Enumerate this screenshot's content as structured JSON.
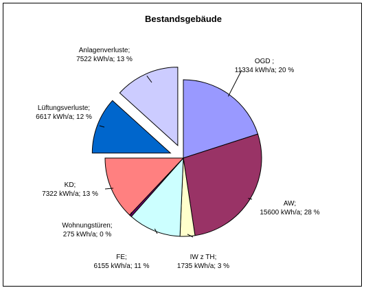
{
  "chart_data": {
    "type": "pie",
    "title": "Bestandsgebäude",
    "unit": "kWh/a",
    "slices": [
      {
        "name": "OGD",
        "value": 11334,
        "percent": "20 %",
        "color": "#9999ff",
        "exploded": false,
        "label_line1": "OGD ;",
        "label_line2": "11334 kWh/a; 20 %"
      },
      {
        "name": "AW",
        "value": 15600,
        "percent": "28 %",
        "color": "#993366",
        "exploded": false,
        "label_line1": "AW;",
        "label_line2": "15600 kWh/a; 28 %"
      },
      {
        "name": "IW z TH",
        "value": 1735,
        "percent": "3 %",
        "color": "#ffffcc",
        "exploded": false,
        "label_line1": "IW z TH;",
        "label_line2": "1735 kWh/a; 3 %"
      },
      {
        "name": "FE",
        "value": 6155,
        "percent": "11 %",
        "color": "#ccffff",
        "exploded": false,
        "label_line1": "FE;",
        "label_line2": "6155 kWh/a; 11 %"
      },
      {
        "name": "Wohnungstüren",
        "value": 275,
        "percent": "0 %",
        "color": "#660066",
        "exploded": false,
        "label_line1": "Wohnungstüren;",
        "label_line2": "275 kWh/a; 0 %"
      },
      {
        "name": "KD",
        "value": 7322,
        "percent": "13 %",
        "color": "#ff8080",
        "exploded": false,
        "label_line1": "KD;",
        "label_line2": "7322 kWh/a; 13 %"
      },
      {
        "name": "Lüftungsverluste",
        "value": 6617,
        "percent": "12 %",
        "color": "#0066cc",
        "exploded": true,
        "label_line1": "Lüftungsverluste;",
        "label_line2": "6617 kWh/a; 12 %"
      },
      {
        "name": "Anlagenverluste",
        "value": 7522,
        "percent": "13 %",
        "color": "#ccccff",
        "exploded": true,
        "label_line1": "Anlagenverluste;",
        "label_line2": "7522 kWh/a; 13 %"
      }
    ],
    "legend": "none"
  }
}
